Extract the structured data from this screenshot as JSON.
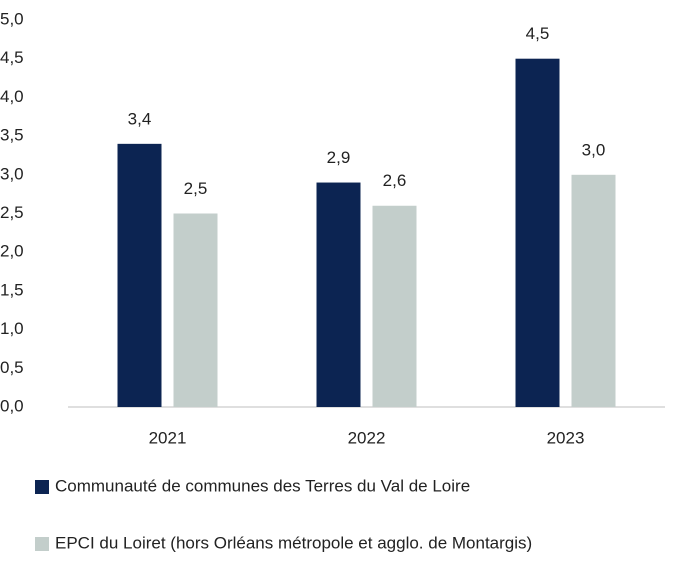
{
  "chart_data": {
    "type": "bar",
    "categories": [
      "2021",
      "2022",
      "2023"
    ],
    "series": [
      {
        "name": "Communauté de communes des Terres du Val de Loire",
        "color": "#0c2452",
        "values": [
          3.4,
          2.9,
          4.5
        ],
        "value_labels": [
          "3,4",
          "2,9",
          "4,5"
        ]
      },
      {
        "name": "EPCI du Loiret (hors Orléans métropole et agglo. de Montargis)",
        "color": "#c3cecb",
        "values": [
          2.5,
          2.6,
          3.0
        ],
        "value_labels": [
          "2,5",
          "2,6",
          "3,0"
        ]
      }
    ],
    "ylim": [
      0,
      5
    ],
    "yticks": [
      {
        "value": 0,
        "label": "0,0"
      },
      {
        "value": 0.5,
        "label": "0,5"
      },
      {
        "value": 1,
        "label": "1,0"
      },
      {
        "value": 1.5,
        "label": "1,5"
      },
      {
        "value": 2,
        "label": "2,0"
      },
      {
        "value": 2.5,
        "label": "2,5"
      },
      {
        "value": 3,
        "label": "3,0"
      },
      {
        "value": 3.5,
        "label": "3,5"
      },
      {
        "value": 4,
        "label": "4,0"
      },
      {
        "value": 4.5,
        "label": "4,5"
      },
      {
        "value": 5,
        "label": "5,0"
      }
    ],
    "grid": false
  }
}
